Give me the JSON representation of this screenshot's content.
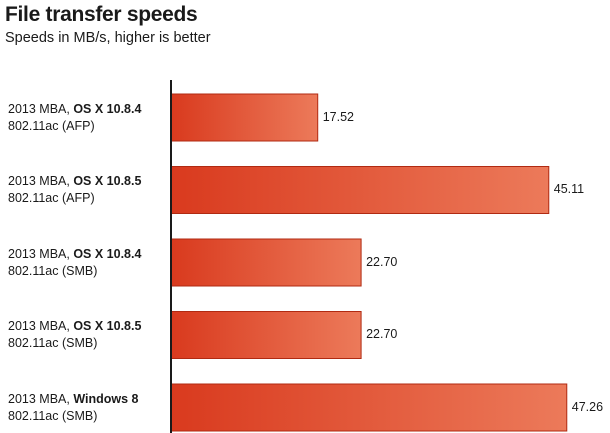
{
  "chart_data": {
    "type": "bar",
    "orientation": "horizontal",
    "title": "File transfer speeds",
    "subtitle": "Speeds in MB/s, higher is better",
    "xlabel": "",
    "ylabel": "",
    "categories": [
      {
        "line1_prefix": "2013 MBA, ",
        "line1_bold": "OS X 10.8.4",
        "line2": "802.11ac (AFP)"
      },
      {
        "line1_prefix": "2013 MBA, ",
        "line1_bold": "OS X 10.8.5",
        "line2": "802.11ac (AFP)"
      },
      {
        "line1_prefix": "2013 MBA, ",
        "line1_bold": "OS X 10.8.4",
        "line2": "802.11ac (SMB)"
      },
      {
        "line1_prefix": "2013 MBA, ",
        "line1_bold": "OS X 10.8.5",
        "line2": "802.11ac (SMB)"
      },
      {
        "line1_prefix": "2013 MBA, ",
        "line1_bold": "Windows 8",
        "line2": "802.11ac (SMB)"
      }
    ],
    "values": [
      17.52,
      45.11,
      22.7,
      22.7,
      47.26
    ],
    "value_labels": [
      "17.52",
      "45.11",
      "22.70",
      "22.70",
      "47.26"
    ],
    "xlim": [
      0,
      48.6
    ],
    "grid": false,
    "legend": "none",
    "colors": {
      "bar_dark": "#d93a1e",
      "bar_light": "#ec7a5a",
      "bar_border": "#b02a12",
      "axis": "#1a1a1a"
    }
  }
}
